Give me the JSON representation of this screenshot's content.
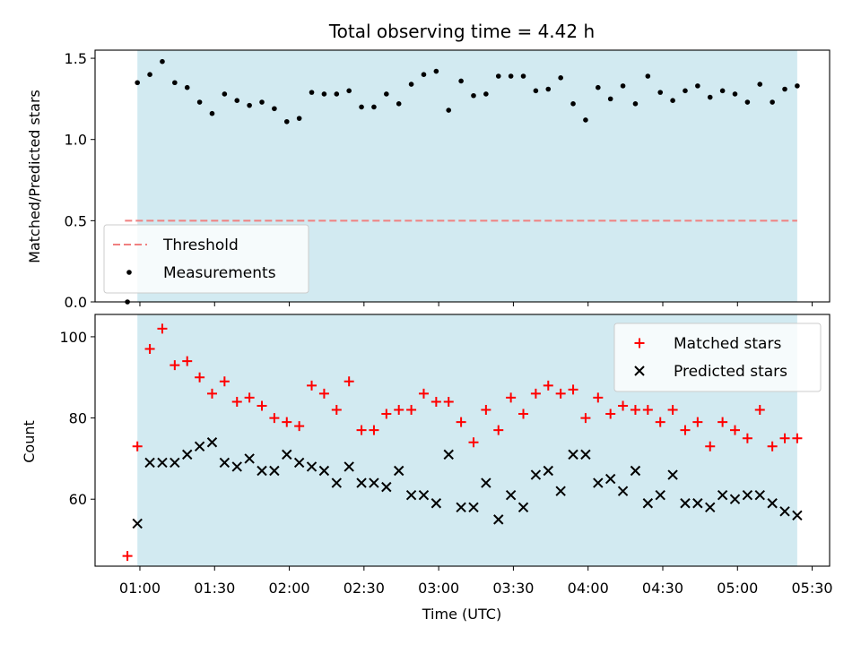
{
  "chart_data": [
    {
      "type": "scatter",
      "title": "Total observing time = 4.42 h",
      "ylabel": "Matched/Predicted stars",
      "xlabel": "",
      "ylim": [
        0,
        1.55
      ],
      "xlim": [
        "00:42",
        "05:37"
      ],
      "grid": false,
      "legend_position": "lower-left",
      "xticks": [
        "01:00",
        "01:30",
        "02:00",
        "02:30",
        "03:00",
        "03:30",
        "04:00",
        "04:30",
        "05:00",
        "05:30"
      ],
      "yticks": [
        "0.0",
        "0.5",
        "1.0",
        "1.5"
      ],
      "shaded_region": {
        "from": "00:59",
        "to": "05:24",
        "color": "#add8e6"
      },
      "threshold": {
        "name": "Threshold",
        "value": 0.5,
        "from": "00:54",
        "to": "05:24",
        "color": "#f08080",
        "style": "dashed"
      },
      "series": [
        {
          "name": "Measurements",
          "color": "#000000",
          "marker": "dot",
          "x": [
            "00:55",
            "00:59",
            "01:04",
            "01:09",
            "01:14",
            "01:19",
            "01:24",
            "01:29",
            "01:34",
            "01:39",
            "01:44",
            "01:49",
            "01:54",
            "01:59",
            "02:04",
            "02:09",
            "02:14",
            "02:19",
            "02:24",
            "02:29",
            "02:34",
            "02:39",
            "02:44",
            "02:49",
            "02:54",
            "02:59",
            "03:04",
            "03:09",
            "03:14",
            "03:19",
            "03:24",
            "03:29",
            "03:34",
            "03:39",
            "03:44",
            "03:49",
            "03:54",
            "03:59",
            "04:04",
            "04:09",
            "04:14",
            "04:19",
            "04:24",
            "04:29",
            "04:34",
            "04:39",
            "04:44",
            "04:49",
            "04:54",
            "04:59",
            "05:04",
            "05:09",
            "05:14",
            "05:19",
            "05:24"
          ],
          "y": [
            0.0,
            1.35,
            1.4,
            1.48,
            1.35,
            1.32,
            1.23,
            1.16,
            1.28,
            1.24,
            1.21,
            1.23,
            1.19,
            1.11,
            1.13,
            1.29,
            1.28,
            1.28,
            1.3,
            1.2,
            1.2,
            1.28,
            1.22,
            1.34,
            1.4,
            1.42,
            1.18,
            1.36,
            1.27,
            1.28,
            1.39,
            1.39,
            1.39,
            1.3,
            1.31,
            1.38,
            1.22,
            1.12,
            1.32,
            1.25,
            1.33,
            1.22,
            1.39,
            1.29,
            1.24,
            1.3,
            1.33,
            1.26,
            1.3,
            1.28,
            1.23,
            1.34,
            1.23,
            1.31,
            1.33
          ]
        }
      ]
    },
    {
      "type": "scatter",
      "title": "",
      "ylabel": "Count",
      "xlabel": "Time (UTC)",
      "ylim": [
        43.5,
        105.5
      ],
      "xlim": [
        "00:42",
        "05:37"
      ],
      "grid": false,
      "legend_position": "top-right",
      "xticks": [
        "01:00",
        "01:30",
        "02:00",
        "02:30",
        "03:00",
        "03:30",
        "04:00",
        "04:30",
        "05:00",
        "05:30"
      ],
      "yticks": [
        "60",
        "80",
        "100"
      ],
      "shaded_region": {
        "from": "00:59",
        "to": "05:24",
        "color": "#add8e6"
      },
      "series": [
        {
          "name": "Matched stars",
          "color": "#ff0000",
          "marker": "plus",
          "x": [
            "00:55",
            "00:59",
            "01:04",
            "01:09",
            "01:14",
            "01:19",
            "01:24",
            "01:29",
            "01:34",
            "01:39",
            "01:44",
            "01:49",
            "01:54",
            "01:59",
            "02:04",
            "02:09",
            "02:14",
            "02:19",
            "02:24",
            "02:29",
            "02:34",
            "02:39",
            "02:44",
            "02:49",
            "02:54",
            "02:59",
            "03:04",
            "03:09",
            "03:14",
            "03:19",
            "03:24",
            "03:29",
            "03:34",
            "03:39",
            "03:44",
            "03:49",
            "03:54",
            "03:59",
            "04:04",
            "04:09",
            "04:14",
            "04:19",
            "04:24",
            "04:29",
            "04:34",
            "04:39",
            "04:44",
            "04:49",
            "04:54",
            "04:59",
            "05:04",
            "05:09",
            "05:14",
            "05:19",
            "05:24"
          ],
          "y": [
            46,
            73,
            97,
            102,
            93,
            94,
            90,
            86,
            89,
            84,
            85,
            83,
            80,
            79,
            78,
            88,
            86,
            82,
            89,
            77,
            77,
            81,
            82,
            82,
            86,
            84,
            84,
            79,
            74,
            82,
            77,
            85,
            81,
            86,
            88,
            86,
            87,
            80,
            85,
            81,
            83,
            82,
            82,
            79,
            82,
            77,
            79,
            73,
            79,
            77,
            75,
            82,
            73,
            75,
            75
          ]
        },
        {
          "name": "Predicted stars",
          "color": "#000000",
          "marker": "x",
          "x": [
            "00:59",
            "01:04",
            "01:09",
            "01:14",
            "01:19",
            "01:24",
            "01:29",
            "01:34",
            "01:39",
            "01:44",
            "01:49",
            "01:54",
            "01:59",
            "02:04",
            "02:09",
            "02:14",
            "02:19",
            "02:24",
            "02:29",
            "02:34",
            "02:39",
            "02:44",
            "02:49",
            "02:54",
            "02:59",
            "03:04",
            "03:09",
            "03:14",
            "03:19",
            "03:24",
            "03:29",
            "03:34",
            "03:39",
            "03:44",
            "03:49",
            "03:54",
            "03:59",
            "04:04",
            "04:09",
            "04:14",
            "04:19",
            "04:24",
            "04:29",
            "04:34",
            "04:39",
            "04:44",
            "04:49",
            "04:54",
            "04:59",
            "05:04",
            "05:09",
            "05:14",
            "05:19",
            "05:24"
          ],
          "y": [
            54,
            69,
            69,
            69,
            71,
            73,
            74,
            69,
            68,
            70,
            67,
            67,
            71,
            69,
            68,
            67,
            64,
            68,
            64,
            64,
            63,
            67,
            61,
            61,
            59,
            71,
            58,
            58,
            64,
            55,
            61,
            58,
            66,
            67,
            62,
            71,
            71,
            64,
            65,
            62,
            67,
            59,
            61,
            66,
            59,
            59,
            58,
            61,
            60,
            61,
            61,
            59,
            57,
            56
          ]
        }
      ]
    }
  ]
}
